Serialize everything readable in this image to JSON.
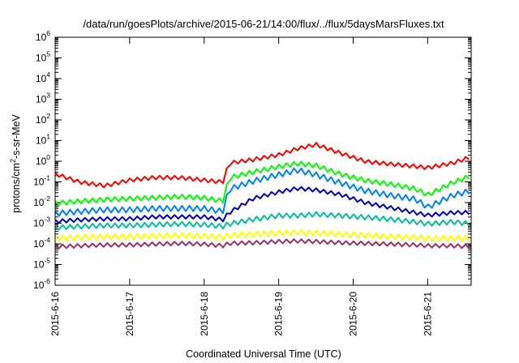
{
  "chart_data": {
    "type": "line",
    "title": "/data/run/goesPlots/archive/2015-06-21/14:00/flux/../flux/5daysMarsFluxes.txt",
    "xlabel": "Coordinated Universal Time (UTC)",
    "ylabel": "protons/cm2-s-sr-MeV",
    "ylabel_parts": {
      "pre": "protons/cm",
      "sup": "2",
      "post": "-s-sr-MeV"
    },
    "y_scale": "log",
    "ylim": [
      1e-06,
      1000000.0
    ],
    "y_ticks": [
      {
        "base": "10",
        "exp": "-6"
      },
      {
        "base": "10",
        "exp": "-5"
      },
      {
        "base": "10",
        "exp": "-4"
      },
      {
        "base": "10",
        "exp": "-3"
      },
      {
        "base": "10",
        "exp": "-2"
      },
      {
        "base": "10",
        "exp": "-1"
      },
      {
        "base": "10",
        "exp": "0"
      },
      {
        "base": "10",
        "exp": "1"
      },
      {
        "base": "10",
        "exp": "2"
      },
      {
        "base": "10",
        "exp": "3"
      },
      {
        "base": "10",
        "exp": "4"
      },
      {
        "base": "10",
        "exp": "5"
      },
      {
        "base": "10",
        "exp": "6"
      }
    ],
    "xlim": [
      "2015-06-16",
      "2015-06-21 14:00"
    ],
    "x_ticks": [
      "2015-6-16",
      "2015-6-17",
      "2015-6-18",
      "2015-6-19",
      "2015-6-20",
      "2015-6-21"
    ],
    "grid": false,
    "legend": "none",
    "sample_times": [
      "2015-06-16 00:00",
      "2015-06-16 08:00",
      "2015-06-16 16:00",
      "2015-06-17 00:00",
      "2015-06-17 08:00",
      "2015-06-17 16:00",
      "2015-06-18 00:00",
      "2015-06-18 06:00",
      "2015-06-18 08:00",
      "2015-06-18 16:00",
      "2015-06-19 00:00",
      "2015-06-19 06:00",
      "2015-06-19 12:00",
      "2015-06-19 20:00",
      "2015-06-20 04:00",
      "2015-06-20 12:00",
      "2015-06-20 20:00",
      "2015-06-21 00:00",
      "2015-06-21 08:00",
      "2015-06-21 14:00"
    ],
    "series": [
      {
        "color": "#ff0000",
        "values": [
          0.3,
          0.12,
          0.08,
          0.15,
          0.2,
          0.2,
          0.15,
          0.12,
          1.0,
          1.5,
          2.5,
          5.0,
          8.0,
          3.0,
          1.2,
          0.9,
          0.7,
          0.6,
          1.0,
          2.0
        ]
      },
      {
        "color": "#00ff00",
        "values": [
          0.012,
          0.015,
          0.018,
          0.02,
          0.022,
          0.025,
          0.022,
          0.015,
          0.2,
          0.4,
          0.7,
          1.0,
          0.8,
          0.3,
          0.15,
          0.1,
          0.06,
          0.03,
          0.12,
          0.25
        ]
      },
      {
        "color": "#0080ff",
        "values": [
          0.004,
          0.005,
          0.006,
          0.006,
          0.007,
          0.007,
          0.007,
          0.005,
          0.06,
          0.15,
          0.3,
          0.5,
          0.3,
          0.12,
          0.05,
          0.03,
          0.02,
          0.008,
          0.03,
          0.05
        ]
      },
      {
        "color": "#0000cc",
        "values": [
          0.0015,
          0.0018,
          0.002,
          0.002,
          0.0025,
          0.0025,
          0.0025,
          0.0018,
          0.004,
          0.02,
          0.04,
          0.06,
          0.05,
          0.03,
          0.012,
          0.007,
          0.004,
          0.003,
          0.004,
          0.004
        ]
      },
      {
        "color": "#00c0a0",
        "values": [
          0.0008,
          0.0009,
          0.001,
          0.001,
          0.0011,
          0.0012,
          0.0011,
          0.0009,
          0.0012,
          0.002,
          0.003,
          0.003,
          0.0035,
          0.003,
          0.0025,
          0.002,
          0.0015,
          0.0012,
          0.0015,
          0.0012
        ]
      },
      {
        "color": "#ffff00",
        "values": [
          0.00025,
          0.00028,
          0.0003,
          0.0003,
          0.00032,
          0.00035,
          0.00032,
          0.00028,
          0.00035,
          0.0004,
          0.00045,
          0.0005,
          0.00045,
          0.0004,
          0.00035,
          0.0003,
          0.00028,
          0.00025,
          0.00025,
          0.00025
        ]
      },
      {
        "color": "#993366",
        "values": [
          9e-05,
          0.0001,
          0.00011,
          0.00011,
          0.00012,
          0.00013,
          0.00012,
          0.0001,
          0.00013,
          0.00014,
          0.00016,
          0.00017,
          0.00016,
          0.00014,
          0.00013,
          0.00012,
          0.00011,
          0.0001,
          0.0001,
          9e-05
        ]
      }
    ]
  }
}
